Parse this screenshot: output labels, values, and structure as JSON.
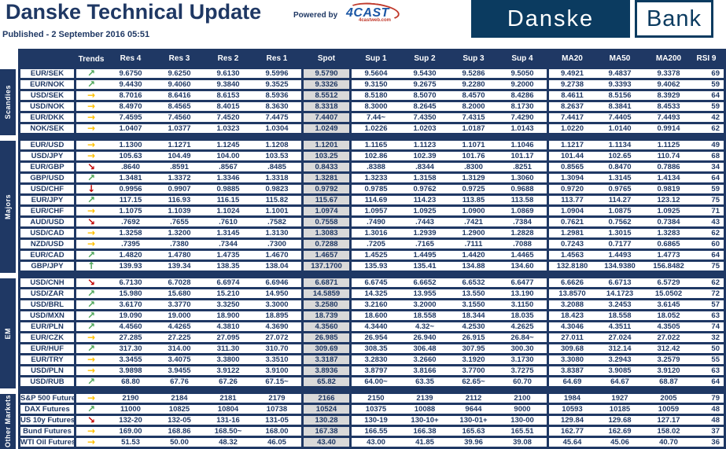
{
  "header": {
    "title": "Danske Technical Update",
    "published": "Published - 2 September 2016 05:51",
    "powered_by": "Powered by",
    "logo_4cast": "4CAST",
    "logo_4cast_sub": "4castweb.com",
    "bank_logo": {
      "danske": "Danske",
      "bank": "Bank"
    }
  },
  "colors": {
    "navy": "#1f3864",
    "logo_navy": "#0b3b60",
    "spot_grey": "#d9d9d9",
    "arrow_up": "#4ca558",
    "arrow_flat": "#ffc000",
    "arrow_down": "#c00000"
  },
  "trend_icons": {
    "up": {
      "glyph": "↑",
      "color": "#4ca558"
    },
    "up-right": {
      "glyph": "↗",
      "color": "#4ca558"
    },
    "right": {
      "glyph": "→",
      "color": "#ffc000"
    },
    "down-right": {
      "glyph": "↘",
      "color": "#c00000"
    },
    "down": {
      "glyph": "↓",
      "color": "#c00000"
    }
  },
  "table": {
    "columns": [
      "Trends",
      "Res 4",
      "Res 3",
      "Res 2",
      "Res 1",
      "Spot",
      "Sup 1",
      "Sup 2",
      "Sup 3",
      "Sup 4",
      "MA20",
      "MA50",
      "MA200",
      "RSI 9"
    ],
    "groups": [
      {
        "label": "Scandies",
        "rows": [
          {
            "pair": "EUR/SEK",
            "trend": "up-right",
            "values": [
              "9.6750",
              "9.6250",
              "9.6130",
              "9.5996",
              "9.5790",
              "9.5604",
              "9.5430",
              "9.5286",
              "9.5050",
              "9.4921",
              "9.4837",
              "9.3378",
              "69"
            ]
          },
          {
            "pair": "EUR/NOK",
            "trend": "up-right",
            "values": [
              "9.4430",
              "9.4060",
              "9.3840",
              "9.3525",
              "9.3326",
              "9.3150",
              "9.2675",
              "9.2280",
              "9.2000",
              "9.2738",
              "9.3393",
              "9.4062",
              "59"
            ]
          },
          {
            "pair": "USD/SEK",
            "trend": "right",
            "values": [
              "8.7016",
              "8.6416",
              "8.6153",
              "8.5936",
              "8.5512",
              "8.5180",
              "8.5070",
              "8.4570",
              "8.4286",
              "8.4611",
              "8.5156",
              "8.3929",
              "64"
            ]
          },
          {
            "pair": "USD/NOK",
            "trend": "right",
            "values": [
              "8.4970",
              "8.4565",
              "8.4015",
              "8.3630",
              "8.3318",
              "8.3000",
              "8.2645",
              "8.2000",
              "8.1730",
              "8.2637",
              "8.3841",
              "8.4533",
              "59"
            ]
          },
          {
            "pair": "EUR/DKK",
            "trend": "right",
            "values": [
              "7.4595",
              "7.4560",
              "7.4520",
              "7.4475",
              "7.4407",
              "7.44~",
              "7.4350",
              "7.4315",
              "7.4290",
              "7.4417",
              "7.4405",
              "7.4493",
              "42"
            ]
          },
          {
            "pair": "NOK/SEK",
            "trend": "right",
            "values": [
              "1.0407",
              "1.0377",
              "1.0323",
              "1.0304",
              "1.0249",
              "1.0226",
              "1.0203",
              "1.0187",
              "1.0143",
              "1.0220",
              "1.0140",
              "0.9914",
              "62"
            ]
          }
        ]
      },
      {
        "label": "Majors",
        "rows": [
          {
            "pair": "EUR/USD",
            "trend": "right",
            "values": [
              "1.1300",
              "1.1271",
              "1.1245",
              "1.1208",
              "1.1201",
              "1.1165",
              "1.1123",
              "1.1071",
              "1.1046",
              "1.1217",
              "1.1134",
              "1.1125",
              "49"
            ]
          },
          {
            "pair": "USD/JPY",
            "trend": "right",
            "values": [
              "105.63",
              "104.49",
              "104.00",
              "103.53",
              "103.25",
              "102.86",
              "102.39",
              "101.76",
              "101.17",
              "101.44",
              "102.65",
              "110.74",
              "68"
            ]
          },
          {
            "pair": "EUR/GBP",
            "trend": "down-right",
            "values": [
              ".8640",
              ".8591",
              ".8567",
              ".8485",
              "0.8433",
              ".8388",
              ".8344",
              ".8300",
              ".8251",
              "0.8565",
              "0.8470",
              "0.7886",
              "34"
            ]
          },
          {
            "pair": "GBP/USD",
            "trend": "up-right",
            "values": [
              "1.3481",
              "1.3372",
              "1.3346",
              "1.3318",
              "1.3281",
              "1.3233",
              "1.3158",
              "1.3129",
              "1.3060",
              "1.3094",
              "1.3145",
              "1.4134",
              "64"
            ]
          },
          {
            "pair": "USD/CHF",
            "trend": "down",
            "values": [
              "0.9956",
              "0.9907",
              "0.9885",
              "0.9823",
              "0.9792",
              "0.9785",
              "0.9762",
              "0.9725",
              "0.9688",
              "0.9720",
              "0.9765",
              "0.9819",
              "59"
            ]
          },
          {
            "pair": "EUR/JPY",
            "trend": "up-right",
            "values": [
              "117.15",
              "116.93",
              "116.15",
              "115.82",
              "115.67",
              "114.69",
              "114.23",
              "113.85",
              "113.58",
              "113.77",
              "114.27",
              "123.12",
              "75"
            ]
          },
          {
            "pair": "EUR/CHF",
            "trend": "right",
            "values": [
              "1.1075",
              "1.1039",
              "1.1024",
              "1.1001",
              "1.0974",
              "1.0957",
              "1.0925",
              "1.0900",
              "1.0869",
              "1.0904",
              "1.0875",
              "1.0925",
              "71"
            ]
          },
          {
            "pair": "AUD/USD",
            "trend": "down-right",
            "values": [
              ".7692",
              ".7655",
              ".7610",
              ".7582",
              "0.7558",
              ".7490",
              ".7443",
              ".7421",
              ".7384",
              "0.7621",
              "0.7562",
              "0.7384",
              "43"
            ]
          },
          {
            "pair": "USD/CAD",
            "trend": "right",
            "values": [
              "1.3258",
              "1.3200",
              "1.3145",
              "1.3130",
              "1.3083",
              "1.3016",
              "1.2939",
              "1.2900",
              "1.2828",
              "1.2981",
              "1.3015",
              "1.3283",
              "62"
            ]
          },
          {
            "pair": "NZD/USD",
            "trend": "right",
            "values": [
              ".7395",
              ".7380",
              ".7344",
              ".7300",
              "0.7288",
              ".7205",
              ".7165",
              ".7111",
              ".7088",
              "0.7243",
              "0.7177",
              "0.6865",
              "60"
            ]
          },
          {
            "pair": "EUR/CAD",
            "trend": "up-right",
            "values": [
              "1.4820",
              "1.4780",
              "1.4735",
              "1.4670",
              "1.4657",
              "1.4525",
              "1.4495",
              "1.4420",
              "1.4465",
              "1.4563",
              "1.4493",
              "1.4773",
              "64"
            ]
          },
          {
            "pair": "GBP/JPY",
            "trend": "up",
            "values": [
              "139.93",
              "139.34",
              "138.35",
              "138.04",
              "137.1700",
              "135.93",
              "135.41",
              "134.88",
              "134.60",
              "132.8180",
              "134.9380",
              "156.8482",
              "75"
            ]
          }
        ]
      },
      {
        "label": "EM",
        "rows": [
          {
            "pair": "USD/CNH",
            "trend": "down-right",
            "values": [
              "6.7130",
              "6.7028",
              "6.6974",
              "6.6946",
              "6.6871",
              "6.6745",
              "6.6652",
              "6.6532",
              "6.6477",
              "6.6626",
              "6.6713",
              "6.5729",
              "62"
            ]
          },
          {
            "pair": "USD/ZAR",
            "trend": "up-right",
            "values": [
              "15.980",
              "15.680",
              "15.210",
              "14.950",
              "14.5859",
              "14.325",
              "13.955",
              "13.550",
              "13.190",
              "13.8570",
              "14.1723",
              "15.0502",
              "72"
            ]
          },
          {
            "pair": "USD/BRL",
            "trend": "up-right",
            "values": [
              "3.6170",
              "3.3770",
              "3.3250",
              "3.3000",
              "3.2580",
              "3.2160",
              "3.2000",
              "3.1550",
              "3.1150",
              "3.2088",
              "3.2453",
              "3.6145",
              "57"
            ]
          },
          {
            "pair": "USD/MXN",
            "trend": "up-right",
            "values": [
              "19.090",
              "19.000",
              "18.900",
              "18.895",
              "18.739",
              "18.600",
              "18.558",
              "18.344",
              "18.035",
              "18.423",
              "18.558",
              "18.052",
              "63"
            ]
          },
          {
            "pair": "EUR/PLN",
            "trend": "up-right",
            "values": [
              "4.4560",
              "4.4265",
              "4.3810",
              "4.3690",
              "4.3560",
              "4.3440",
              "4.32~",
              "4.2530",
              "4.2625",
              "4.3046",
              "4.3511",
              "4.3505",
              "74"
            ]
          },
          {
            "pair": "EUR/CZK",
            "trend": "right",
            "values": [
              "27.285",
              "27.225",
              "27.095",
              "27.072",
              "26.985",
              "26.954",
              "26.940",
              "26.915",
              "26.84~",
              "27.011",
              "27.024",
              "27.022",
              "32"
            ]
          },
          {
            "pair": "EUR/HUF",
            "trend": "up-right",
            "values": [
              "317.30",
              "314.00",
              "311.30",
              "310.70",
              "309.69",
              "308.35",
              "306.48",
              "307.95",
              "300.30",
              "309.68",
              "312.14",
              "312.42",
              "50"
            ]
          },
          {
            "pair": "EUR/TRY",
            "trend": "right",
            "values": [
              "3.3455",
              "3.4075",
              "3.3800",
              "3.3510",
              "3.3187",
              "3.2830",
              "3.2660",
              "3.1920",
              "3.1730",
              "3.3080",
              "3.2943",
              "3.2579",
              "55"
            ]
          },
          {
            "pair": "USD/PLN",
            "trend": "right",
            "values": [
              "3.9898",
              "3.9455",
              "3.9122",
              "3.9100",
              "3.8936",
              "3.8797",
              "3.8166",
              "3.7700",
              "3.7275",
              "3.8387",
              "3.9085",
              "3.9120",
              "63"
            ]
          },
          {
            "pair": "USD/RUB",
            "trend": "up-right",
            "values": [
              "68.80",
              "67.76",
              "67.26",
              "67.15~",
              "65.82",
              "64.00~",
              "63.35",
              "62.65~",
              "60.70",
              "64.69",
              "64.67",
              "68.87",
              "64"
            ]
          }
        ]
      },
      {
        "label": "Other Markets",
        "rows": [
          {
            "pair": "S&P 500 Futures",
            "trend": "right",
            "values": [
              "2190",
              "2184",
              "2181",
              "2179",
              "2166",
              "2150",
              "2139",
              "2112",
              "2100",
              "1984",
              "1927",
              "2005",
              "79"
            ]
          },
          {
            "pair": "DAX Futures",
            "trend": "up-right",
            "values": [
              "11000",
              "10825",
              "10804",
              "10738",
              "10524",
              "10375",
              "10088",
              "9644",
              "9000",
              "10593",
              "10185",
              "10059",
              "48"
            ]
          },
          {
            "pair": "US 10y Futures",
            "trend": "down-right",
            "values": [
              "132-20",
              "132-05",
              "131-16",
              "131-05",
              "130.28",
              "130-19",
              "130-10+",
              "130-01+",
              "130-00",
              "129.84",
              "129.68",
              "127.17",
              "48"
            ]
          },
          {
            "pair": "Bund Futures",
            "trend": "right",
            "values": [
              "169.00",
              "168.86",
              "168.50~",
              "168.00",
              "167.38",
              "166.55",
              "166.38",
              "165.63",
              "165.51",
              "162.77",
              "162.69",
              "158.02",
              "37"
            ]
          },
          {
            "pair": "WTI Oil Futures",
            "trend": "right",
            "values": [
              "51.53",
              "50.00",
              "48.32",
              "46.05",
              "43.40",
              "43.00",
              "41.85",
              "39.96",
              "39.08",
              "45.64",
              "45.06",
              "40.70",
              "36"
            ]
          }
        ]
      }
    ]
  }
}
